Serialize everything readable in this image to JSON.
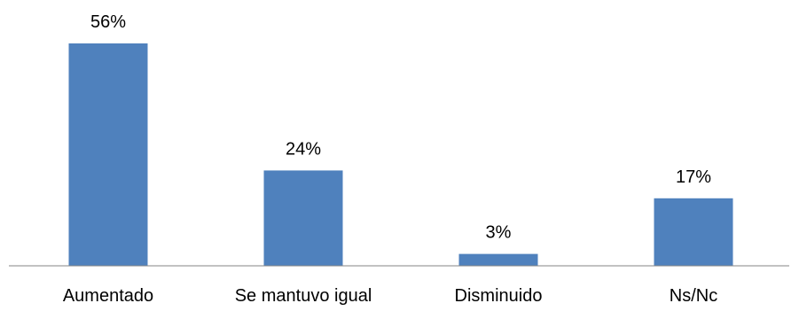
{
  "chart_data": {
    "type": "bar",
    "categories": [
      "Aumentado",
      "Se mantuvo igual",
      "Disminuido",
      "Ns/Nc"
    ],
    "values": [
      56,
      24,
      3,
      17
    ],
    "value_labels": [
      "56%",
      "24%",
      "3%",
      "17%"
    ],
    "title": "",
    "xlabel": "",
    "ylabel": "",
    "ylim": [
      0,
      56
    ],
    "grid": false,
    "legend": "none",
    "colors": {
      "bar": "#4f81bd",
      "axis": "#868686"
    }
  }
}
